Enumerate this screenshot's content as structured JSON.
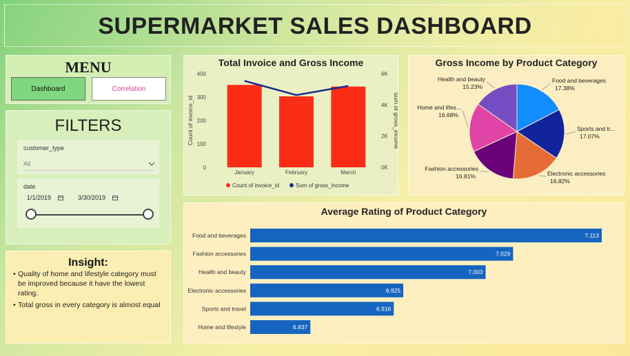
{
  "header": {
    "title": "SUPERMARKET SALES DASHBOARD"
  },
  "menu": {
    "title": "MENU",
    "dashboard_label": "Dashboard",
    "correlation_label": "Correlation"
  },
  "filters": {
    "title": "FILTERS",
    "customer_type_label": "customer_type",
    "customer_type_value": "All",
    "date_label": "date",
    "date_start": "1/1/2019",
    "date_end": "3/30/2019",
    "calendar_icon": "calendar-icon",
    "chevron_icon": "chevron-down-icon"
  },
  "insight": {
    "title": "Insight:",
    "points": [
      "Quality of home and lifestyle category must be improved because it have the lowest rating.",
      "Total gross in every category is almost equal"
    ]
  },
  "chart_data": [
    {
      "type": "bar",
      "title": "Total Invoice and Gross Income",
      "categories": [
        "January",
        "February",
        "March"
      ],
      "series": [
        {
          "name": "Count of invoice_id",
          "type": "bar",
          "axis": "left",
          "color": "#fb2d16",
          "values": [
            352,
            303,
            345
          ]
        },
        {
          "name": "Sum of gross_income",
          "type": "line",
          "axis": "right",
          "color": "#1b2a8c",
          "values": [
            5537.7,
            4629.5,
            5212.2
          ]
        }
      ],
      "ylabel": "Count of invoice_id",
      "y2label": "Sum of gross_income",
      "ylim": [
        0,
        400
      ],
      "yticks": [
        0,
        100,
        200,
        300,
        400
      ],
      "y2lim": [
        0,
        6000
      ],
      "y2ticks": [
        "0K",
        "2K",
        "4K",
        "6K"
      ],
      "y2tick_values": [
        0,
        2000,
        4000,
        6000
      ],
      "legend_position": "bottom"
    },
    {
      "type": "pie",
      "title": "Gross Income by Product Category",
      "slices": [
        {
          "label": "Food and beverages",
          "display_label": "Food and beverages",
          "value": 17.38,
          "pct": "17.38%",
          "color": "#118dff"
        },
        {
          "label": "Sports and travel",
          "display_label": "Sports and tr...",
          "value": 17.07,
          "pct": "17.07%",
          "color": "#12239e"
        },
        {
          "label": "Electronic accessories",
          "display_label": "Electronic accessories",
          "value": 16.82,
          "pct": "16.82%",
          "color": "#e66c37"
        },
        {
          "label": "Fashion accessories",
          "display_label": "Fashion accessories",
          "value": 16.81,
          "pct": "16.81%",
          "color": "#6b007b"
        },
        {
          "label": "Home and lifestyle",
          "display_label": "Home and lifes...",
          "value": 16.68,
          "pct": "16.68%",
          "color": "#e044a7"
        },
        {
          "label": "Health and beauty",
          "display_label": "Health and beauty",
          "value": 15.23,
          "pct": "15.23%",
          "color": "#744ec2"
        }
      ]
    },
    {
      "type": "bar",
      "orientation": "horizontal",
      "title": "Average Rating of Product Category",
      "categories": [
        "Food and beverages",
        "Fashion accessories",
        "Health and beauty",
        "Electronic accessories",
        "Sports and travel",
        "Home and lifestyle"
      ],
      "values": [
        7.113,
        7.029,
        7.003,
        6.925,
        6.916,
        6.837
      ],
      "value_labels": [
        "7.113",
        "7.029",
        "7.003",
        "6.925",
        "6.916",
        "6.837"
      ],
      "xlim": [
        6.78,
        7.113
      ],
      "color": "#1565c0"
    }
  ]
}
